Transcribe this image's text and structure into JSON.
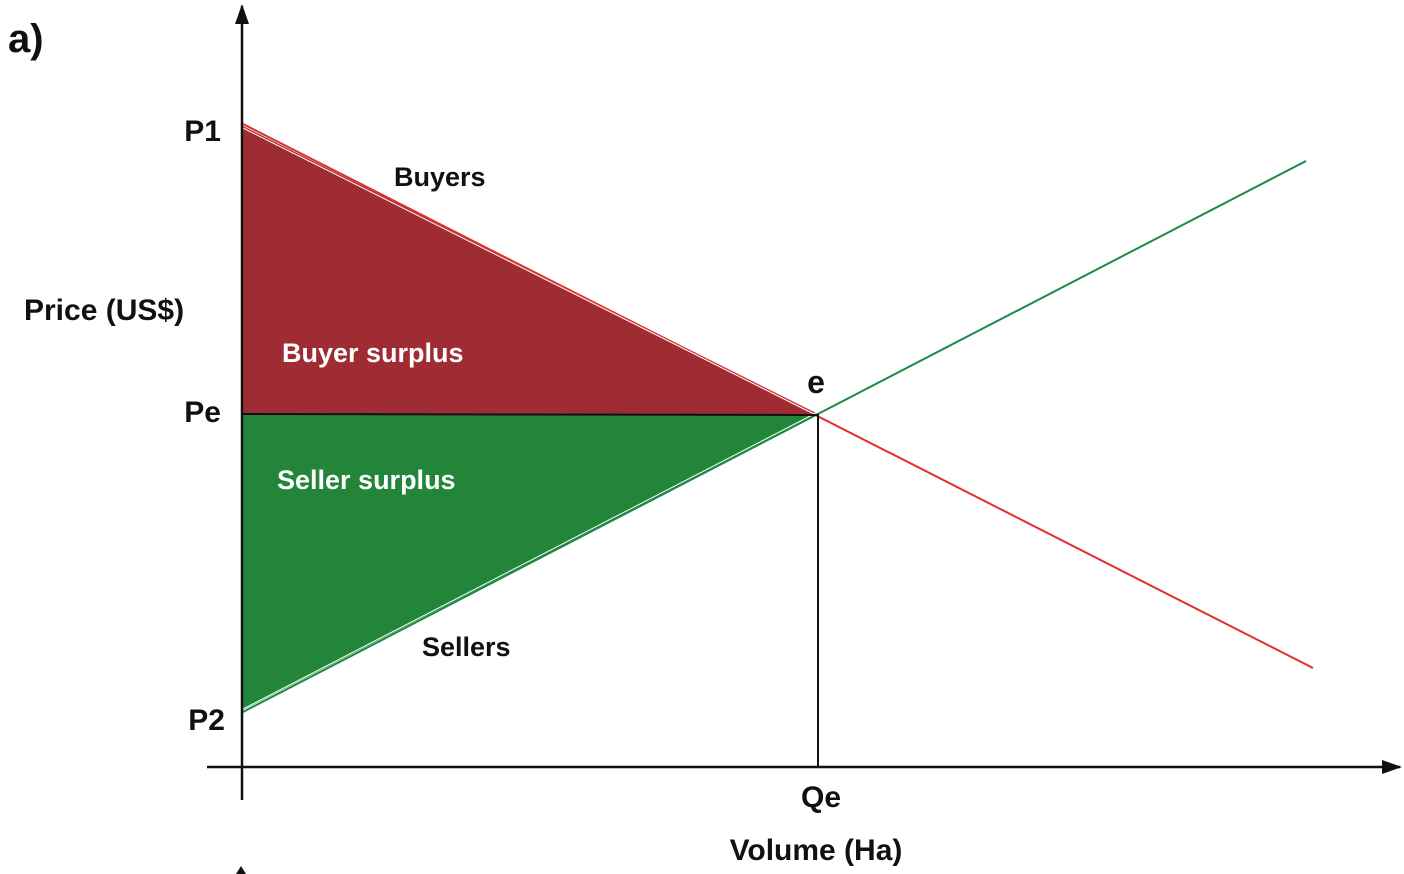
{
  "panel_label": "a)",
  "axes": {
    "y_label": "Price (US$)",
    "x_label": "Volume (Ha)"
  },
  "price_ticks": {
    "p1": "P1",
    "pe": "Pe",
    "p2": "P2"
  },
  "volume_ticks": {
    "qe": "Qe"
  },
  "curves": {
    "buyers": "Buyers",
    "sellers": "Sellers"
  },
  "equilibrium_label": "e",
  "regions": {
    "buyer_surplus": "Buyer surplus",
    "seller_surplus": "Seller surplus"
  },
  "colors": {
    "buyer_surplus_fill": "#a02c33",
    "seller_surplus_fill": "#23853a",
    "buyers_line": "#e0302e",
    "sellers_line": "#1b8a47",
    "axis": "#111111"
  }
}
